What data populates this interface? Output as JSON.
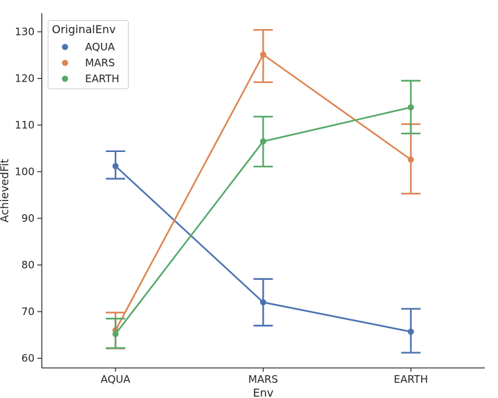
{
  "chart_data": {
    "type": "line",
    "title": "",
    "xlabel": "Env",
    "ylabel": "AchievedFit",
    "categories": [
      "AQUA",
      "MARS",
      "EARTH"
    ],
    "ylim": [
      58,
      134
    ],
    "yticks": [
      60,
      70,
      80,
      90,
      100,
      110,
      120,
      130
    ],
    "legend": {
      "title": "OriginalEnv",
      "placement": "top-left"
    },
    "series": [
      {
        "name": "AQUA",
        "color": "#4c72b0",
        "values": [
          101.2,
          72.0,
          65.7
        ],
        "ci_low": [
          98.5,
          67.0,
          61.2
        ],
        "ci_high": [
          104.4,
          77.0,
          70.6
        ]
      },
      {
        "name": "MARS",
        "color": "#dd8452",
        "values": [
          66.0,
          125.1,
          102.6
        ],
        "ci_low": [
          62.1,
          119.2,
          95.3
        ],
        "ci_high": [
          69.8,
          130.4,
          110.2
        ]
      },
      {
        "name": "EARTH",
        "color": "#55a868",
        "values": [
          65.2,
          106.5,
          113.8
        ],
        "ci_low": [
          62.2,
          101.1,
          108.2
        ],
        "ci_high": [
          68.5,
          111.8,
          119.5
        ]
      }
    ]
  }
}
